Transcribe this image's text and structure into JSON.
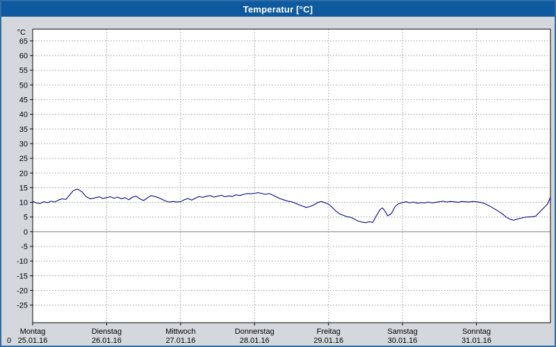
{
  "title_bar": {
    "text": "Temperatur [°C]",
    "bg": "#0e5a9e",
    "fg": "#ffffff"
  },
  "colors": {
    "background": "#d4d8dc",
    "plot_bg": "#ffffff",
    "grid": "#999999",
    "zero_line": "#777777",
    "frame": "#2e6ca6",
    "plot_border": "#000000",
    "line": "#00008b"
  },
  "y_axis": {
    "unit_label": "°C",
    "ticks": [
      65,
      60,
      55,
      50,
      45,
      40,
      35,
      30,
      25,
      20,
      15,
      10,
      5,
      0,
      -5,
      -10,
      -15,
      -20,
      -25
    ],
    "domain": [
      -31,
      69
    ]
  },
  "x_axis": {
    "num_days": 7,
    "corner_label": "0",
    "days": [
      {
        "name": "Montag",
        "date": "25.01.16"
      },
      {
        "name": "Dienstag",
        "date": "26.01.16"
      },
      {
        "name": "Mittwoch",
        "date": "27.01.16"
      },
      {
        "name": "Donnerstag",
        "date": "28.01.16"
      },
      {
        "name": "Freitag",
        "date": "29.01.16"
      },
      {
        "name": "Samstag",
        "date": "30.01.16"
      },
      {
        "name": "Sonntag",
        "date": "31.01.16"
      }
    ]
  },
  "chart_data": {
    "type": "line",
    "title": "Temperatur [°C]",
    "ylabel": "°C",
    "ylim": [
      -25,
      65
    ],
    "grid": true,
    "x_description": "days since Montag 25.01.16 00:00",
    "categories": [
      "Montag 25.01.16",
      "Dienstag 26.01.16",
      "Mittwoch 27.01.16",
      "Donnerstag 28.01.16",
      "Freitag 29.01.16",
      "Samstag 30.01.16",
      "Sonntag 31.01.16"
    ],
    "series": [
      {
        "name": "Temperatur",
        "color": "#00008b",
        "points": [
          [
            0,
            10.3
          ],
          [
            0.05,
            9.8
          ],
          [
            0.1,
            9.6
          ],
          [
            0.15,
            10.2
          ],
          [
            0.2,
            9.9
          ],
          [
            0.25,
            10.4
          ],
          [
            0.3,
            10.1
          ],
          [
            0.35,
            10.8
          ],
          [
            0.4,
            11.2
          ],
          [
            0.45,
            11
          ],
          [
            0.5,
            12.5
          ],
          [
            0.55,
            14
          ],
          [
            0.6,
            14.5
          ],
          [
            0.63,
            14.2
          ],
          [
            0.67,
            13.5
          ],
          [
            0.72,
            12
          ],
          [
            0.78,
            11.2
          ],
          [
            0.84,
            11.5
          ],
          [
            0.9,
            11.9
          ],
          [
            0.95,
            11.3
          ],
          [
            1,
            11.6
          ],
          [
            1.05,
            11.9
          ],
          [
            1.1,
            11.4
          ],
          [
            1.15,
            11.8
          ],
          [
            1.2,
            11.2
          ],
          [
            1.25,
            11.6
          ],
          [
            1.3,
            10.9
          ],
          [
            1.35,
            11.8
          ],
          [
            1.4,
            12.1
          ],
          [
            1.45,
            11.2
          ],
          [
            1.5,
            10.6
          ],
          [
            1.55,
            11.5
          ],
          [
            1.6,
            12.3
          ],
          [
            1.65,
            12
          ],
          [
            1.7,
            11.6
          ],
          [
            1.75,
            11
          ],
          [
            1.8,
            10.4
          ],
          [
            1.85,
            10.1
          ],
          [
            1.9,
            10.3
          ],
          [
            1.95,
            10.1
          ],
          [
            2,
            10.2
          ],
          [
            2.05,
            10.9
          ],
          [
            2.1,
            11.3
          ],
          [
            2.15,
            10.8
          ],
          [
            2.2,
            11.4
          ],
          [
            2.25,
            12
          ],
          [
            2.3,
            11.7
          ],
          [
            2.35,
            12.1
          ],
          [
            2.4,
            12.3
          ],
          [
            2.45,
            11.8
          ],
          [
            2.5,
            12.1
          ],
          [
            2.55,
            12.4
          ],
          [
            2.6,
            11.9
          ],
          [
            2.65,
            12.2
          ],
          [
            2.7,
            12
          ],
          [
            2.75,
            12.6
          ],
          [
            2.8,
            12.3
          ],
          [
            2.85,
            12.7
          ],
          [
            2.9,
            13
          ],
          [
            2.95,
            12.9
          ],
          [
            3,
            13.1
          ],
          [
            3.05,
            13.3
          ],
          [
            3.1,
            13
          ],
          [
            3.15,
            12.7
          ],
          [
            3.2,
            13
          ],
          [
            3.25,
            12.4
          ],
          [
            3.3,
            11.8
          ],
          [
            3.35,
            11.2
          ],
          [
            3.4,
            10.8
          ],
          [
            3.45,
            10.4
          ],
          [
            3.5,
            10.2
          ],
          [
            3.55,
            9.7
          ],
          [
            3.6,
            9.2
          ],
          [
            3.65,
            8.7
          ],
          [
            3.7,
            8.3
          ],
          [
            3.75,
            8.6
          ],
          [
            3.8,
            9.1
          ],
          [
            3.85,
            9.9
          ],
          [
            3.9,
            10.3
          ],
          [
            3.95,
            9.9
          ],
          [
            4,
            9.4
          ],
          [
            4.05,
            8.3
          ],
          [
            4.1,
            7
          ],
          [
            4.15,
            6.1
          ],
          [
            4.2,
            5.6
          ],
          [
            4.25,
            5.1
          ],
          [
            4.3,
            4.9
          ],
          [
            4.35,
            4.3
          ],
          [
            4.4,
            3.6
          ],
          [
            4.45,
            3.3
          ],
          [
            4.5,
            3.1
          ],
          [
            4.55,
            3.4
          ],
          [
            4.6,
            3.2
          ],
          [
            4.65,
            5.6
          ],
          [
            4.7,
            7.6
          ],
          [
            4.73,
            8.1
          ],
          [
            4.76,
            7.1
          ],
          [
            4.8,
            5.4
          ],
          [
            4.85,
            6.2
          ],
          [
            4.9,
            8.6
          ],
          [
            4.95,
            9.6
          ],
          [
            5,
            9.9
          ],
          [
            5.05,
            10.2
          ],
          [
            5.1,
            9.8
          ],
          [
            5.15,
            10.1
          ],
          [
            5.2,
            9.7
          ],
          [
            5.25,
            9.9
          ],
          [
            5.3,
            9.8
          ],
          [
            5.35,
            10.1
          ],
          [
            5.4,
            9.8
          ],
          [
            5.45,
            10
          ],
          [
            5.5,
            10.2
          ],
          [
            5.55,
            10.4
          ],
          [
            5.6,
            10.1
          ],
          [
            5.65,
            10.3
          ],
          [
            5.7,
            10.2
          ],
          [
            5.75,
            10
          ],
          [
            5.8,
            10.3
          ],
          [
            5.85,
            10.2
          ],
          [
            5.9,
            10.1
          ],
          [
            5.95,
            10.3
          ],
          [
            6,
            10.2
          ],
          [
            6.05,
            10
          ],
          [
            6.1,
            9.7
          ],
          [
            6.15,
            9.1
          ],
          [
            6.2,
            8.4
          ],
          [
            6.25,
            7.7
          ],
          [
            6.3,
            6.9
          ],
          [
            6.35,
            6.1
          ],
          [
            6.4,
            5
          ],
          [
            6.45,
            4.3
          ],
          [
            6.5,
            3.9
          ],
          [
            6.55,
            4.3
          ],
          [
            6.6,
            4.6
          ],
          [
            6.65,
            4.9
          ],
          [
            6.7,
            5
          ],
          [
            6.75,
            5.1
          ],
          [
            6.8,
            5.3
          ],
          [
            6.85,
            6.6
          ],
          [
            6.9,
            7.9
          ],
          [
            6.93,
            8.6
          ],
          [
            6.96,
            9.4
          ],
          [
            6.98,
            10.5
          ],
          [
            7,
            11.8
          ]
        ]
      }
    ]
  }
}
